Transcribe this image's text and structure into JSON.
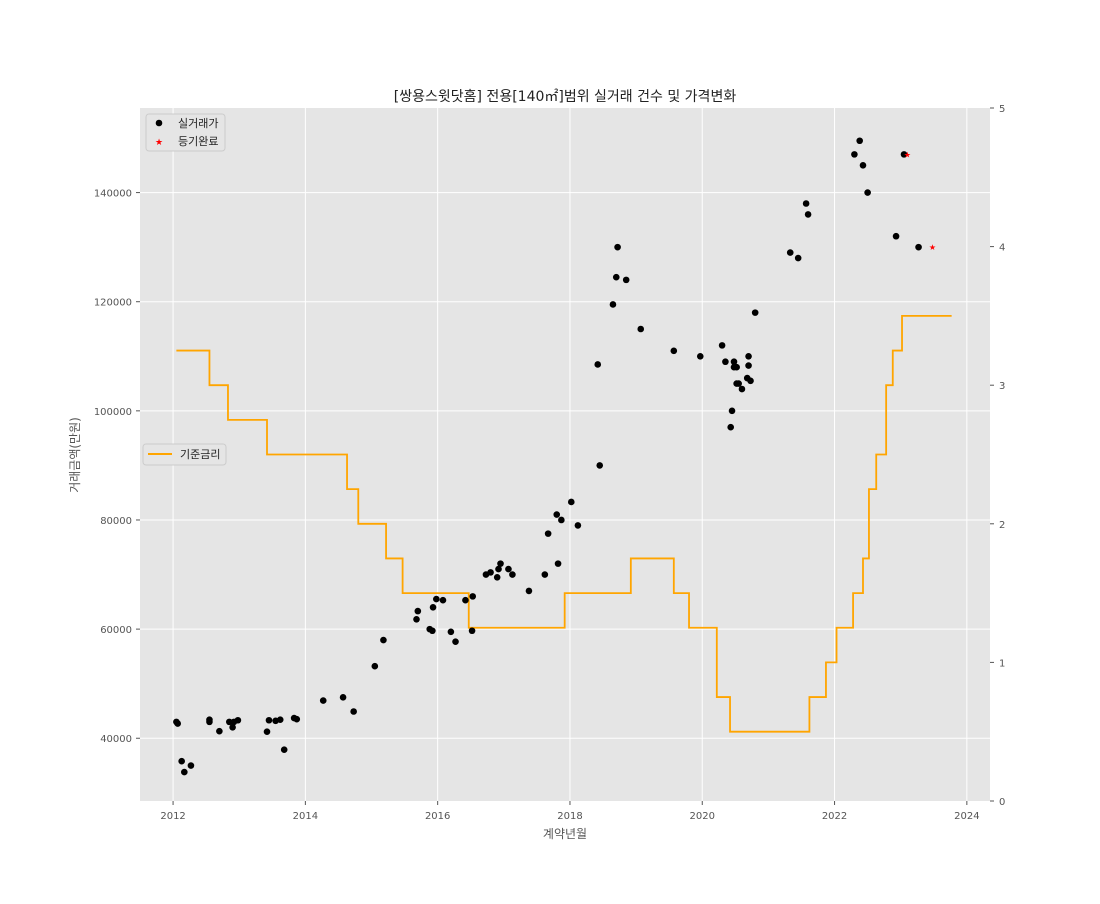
{
  "chart_data": {
    "type": "scatter",
    "title": "[쌍용스윗닷홈] 전용[140㎡]범위 실거래 건수 및 가격변화",
    "xlabel": "계약년월",
    "ylabel": "거래금액(만원)",
    "x_ticks": [
      "2012",
      "2014",
      "2016",
      "2018",
      "2020",
      "2022",
      "2024"
    ],
    "y_ticks": [
      "40000",
      "60000",
      "80000",
      "100000",
      "120000",
      "140000"
    ],
    "y2_ticks": [
      "0",
      "1",
      "2",
      "3",
      "4",
      "5"
    ],
    "xlim": [
      2011.5,
      2024.35
    ],
    "ylim": [
      28500,
      155500
    ],
    "y2lim": [
      0,
      5
    ],
    "grid": true,
    "legend_top": {
      "placement": "top-left",
      "entries": [
        "실거래가",
        "등기완료"
      ]
    },
    "legend_mid": {
      "placement": "center-left",
      "entries": [
        "기준금리"
      ]
    },
    "colors": {
      "trades": "#000000",
      "registered": "#ff0000",
      "rate": "#ffa500",
      "background": "#e5e5e5",
      "grid": "#ffffff"
    },
    "series": [
      {
        "name": "실거래가",
        "kind": "scatter",
        "x": [
          2012.05,
          2012.07,
          2012.13,
          2012.17,
          2012.27,
          2012.55,
          2012.55,
          2012.7,
          2012.85,
          2012.9,
          2012.92,
          2012.98,
          2013.42,
          2013.45,
          2013.55,
          2013.62,
          2013.68,
          2013.83,
          2013.87,
          2014.27,
          2014.57,
          2014.73,
          2015.05,
          2015.18,
          2015.68,
          2015.7,
          2015.88,
          2015.92,
          2015.93,
          2015.98,
          2016.08,
          2016.2,
          2016.27,
          2016.42,
          2016.52,
          2016.53,
          2016.73,
          2016.8,
          2016.9,
          2016.92,
          2016.95,
          2017.07,
          2017.13,
          2017.38,
          2017.62,
          2017.67,
          2017.8,
          2017.82,
          2017.87,
          2018.02,
          2018.12,
          2018.42,
          2018.45,
          2018.65,
          2018.7,
          2018.72,
          2018.85,
          2019.07,
          2019.57,
          2019.97,
          2020.3,
          2020.35,
          2020.43,
          2020.45,
          2020.48,
          2020.48,
          2020.52,
          2020.52,
          2020.55,
          2020.6,
          2020.68,
          2020.7,
          2020.7,
          2020.73,
          2020.8,
          2021.33,
          2021.45,
          2021.57,
          2021.6,
          2022.3,
          2022.38,
          2022.43,
          2022.5,
          2022.93,
          2023.05,
          2023.27
        ],
        "y": [
          43000,
          42700,
          35800,
          33800,
          35000,
          43000,
          43400,
          41300,
          43000,
          42000,
          43000,
          43300,
          41200,
          43300,
          43200,
          43400,
          37900,
          43700,
          43500,
          46900,
          47500,
          44900,
          53200,
          58000,
          61800,
          63300,
          60000,
          59700,
          64000,
          65500,
          65300,
          59500,
          57700,
          65300,
          59700,
          66000,
          70000,
          70400,
          69500,
          71000,
          72000,
          71000,
          70000,
          67000,
          70000,
          77500,
          81000,
          72000,
          80000,
          83300,
          79000,
          108500,
          90000,
          119500,
          124500,
          130000,
          124000,
          115000,
          111000,
          110000,
          112000,
          109000,
          97000,
          100000,
          108000,
          109000,
          105000,
          108000,
          105000,
          104000,
          106000,
          110000,
          108300,
          105500,
          118000,
          129000,
          128000,
          138000,
          136000,
          147000,
          149500,
          145000,
          140000,
          132000,
          147000,
          130000
        ]
      },
      {
        "name": "등기완료",
        "kind": "scatter-star",
        "x": [
          2023.1,
          2023.48
        ],
        "y": [
          147000,
          130000
        ]
      },
      {
        "name": "기준금리",
        "kind": "step",
        "axis": "right",
        "x": [
          2012.05,
          2012.55,
          2012.83,
          2013.42,
          2014.63,
          2014.8,
          2015.22,
          2015.47,
          2016.47,
          2017.92,
          2018.92,
          2019.57,
          2019.8,
          2020.22,
          2020.42,
          2021.62,
          2021.87,
          2022.03,
          2022.28,
          2022.43,
          2022.52,
          2022.63,
          2022.78,
          2022.88,
          2023.02,
          2023.77
        ],
        "y": [
          3.25,
          3.0,
          2.75,
          2.5,
          2.25,
          2.0,
          1.75,
          1.5,
          1.25,
          1.5,
          1.75,
          1.5,
          1.25,
          0.75,
          0.5,
          0.75,
          1.0,
          1.25,
          1.5,
          1.75,
          2.25,
          2.5,
          3.0,
          3.25,
          3.5,
          3.5
        ]
      }
    ]
  }
}
